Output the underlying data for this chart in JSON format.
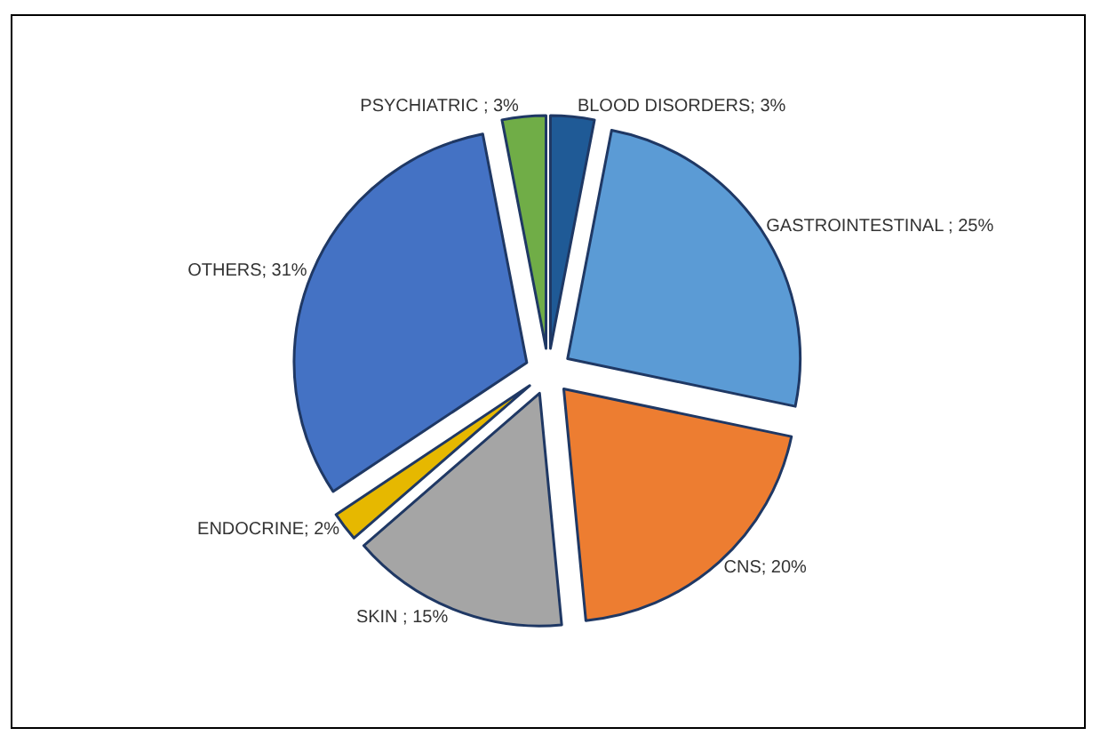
{
  "chart_data": {
    "type": "pie",
    "categories": [
      "BLOOD DISORDERS; 3%",
      "GASTROINTESTINAL ; 25%",
      "CNS; 20%",
      "SKIN ; 15%",
      "ENDOCRINE; 2%",
      "OTHERS; 31%",
      "PSYCHIATRIC ; 3%"
    ],
    "values": [
      3,
      25,
      20,
      15,
      2,
      31,
      3
    ],
    "colors": [
      "#1f5a96",
      "#5b9bd5",
      "#ed7d31",
      "#a5a5a5",
      "#e6b800",
      "#4472c4",
      "#70ad47"
    ],
    "legend": false
  }
}
